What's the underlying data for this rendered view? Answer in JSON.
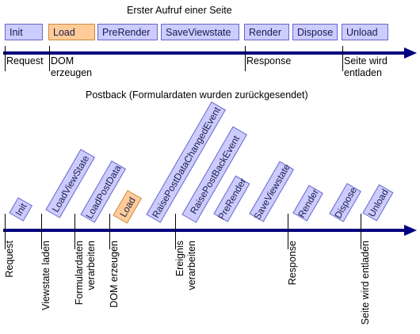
{
  "section1": {
    "title": "Erster Aufruf einer Seite",
    "stages": [
      {
        "label": "Init",
        "highlight": false
      },
      {
        "label": "Load",
        "highlight": true
      },
      {
        "label": "PreRender",
        "highlight": false
      },
      {
        "label": "SaveViewstate",
        "highlight": false
      },
      {
        "label": "Render",
        "highlight": false
      },
      {
        "label": "Dispose",
        "highlight": false
      },
      {
        "label": "Unload",
        "highlight": false
      }
    ],
    "markers": [
      {
        "lines": [
          "Request"
        ]
      },
      {
        "lines": [
          "DOM",
          "erzeugen"
        ]
      },
      {
        "lines": [
          "Response"
        ]
      },
      {
        "lines": [
          "Seite wird",
          "entladen"
        ]
      }
    ]
  },
  "section2": {
    "title": "Postback (Formulardaten wurden zurückgesendet)",
    "stages": [
      {
        "label": "Init",
        "highlight": false
      },
      {
        "label": "LoadViewState",
        "highlight": false
      },
      {
        "label": "LoadPostData",
        "highlight": false
      },
      {
        "label": "Load",
        "highlight": true
      },
      {
        "label": "RaisePostDataChangedEvent",
        "highlight": false
      },
      {
        "label": "RaisePostBackEvent",
        "highlight": false
      },
      {
        "label": "PreRender",
        "highlight": false
      },
      {
        "label": "SaveViewstate",
        "highlight": false
      },
      {
        "label": "Render",
        "highlight": false
      },
      {
        "label": "Dispose",
        "highlight": false
      },
      {
        "label": "Unload",
        "highlight": false
      }
    ],
    "markers": [
      {
        "lines": [
          "Request"
        ]
      },
      {
        "lines": [
          "Viewstate laden"
        ]
      },
      {
        "lines": [
          "Formulardaten",
          "verarbeiten"
        ]
      },
      {
        "lines": [
          "DOM erzeugen"
        ]
      },
      {
        "lines": [
          "Ereignis",
          "verarbeiten"
        ]
      },
      {
        "lines": [
          "Response"
        ]
      },
      {
        "lines": [
          "Seite wird entladen"
        ]
      }
    ]
  },
  "colors": {
    "box_fill": "#ccccff",
    "box_border": "#6666cc",
    "highlight_fill": "#ffcc99",
    "highlight_border": "#cc8844",
    "arrow": "#000080",
    "box_text": "#1a1a4d"
  }
}
